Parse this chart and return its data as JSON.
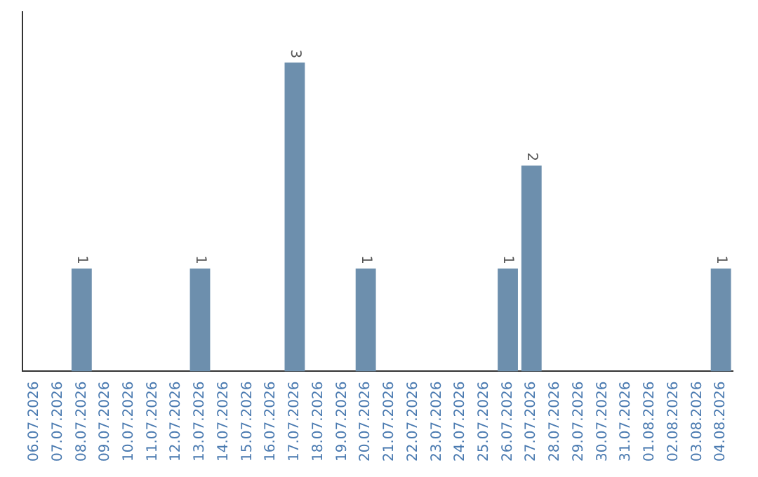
{
  "chart_data": {
    "type": "bar",
    "categories": [
      "06.07.2026",
      "07.07.2026",
      "08.07.2026",
      "09.07.2026",
      "10.07.2026",
      "11.07.2026",
      "12.07.2026",
      "13.07.2026",
      "14.07.2026",
      "15.07.2026",
      "16.07.2026",
      "17.07.2026",
      "18.07.2026",
      "19.07.2026",
      "20.07.2026",
      "21.07.2026",
      "22.07.2026",
      "23.07.2026",
      "24.07.2026",
      "25.07.2026",
      "26.07.2026",
      "27.07.2026",
      "28.07.2026",
      "29.07.2026",
      "30.07.2026",
      "31.07.2026",
      "01.08.2026",
      "02.08.2026",
      "03.08.2026",
      "04.08.2026"
    ],
    "values": [
      0,
      0,
      1,
      0,
      0,
      0,
      0,
      1,
      0,
      0,
      0,
      3,
      0,
      0,
      1,
      0,
      0,
      0,
      0,
      0,
      1,
      2,
      0,
      0,
      0,
      0,
      0,
      0,
      0,
      1
    ],
    "value_labels": [
      null,
      null,
      "1",
      null,
      null,
      null,
      null,
      "1",
      null,
      null,
      null,
      "3",
      null,
      null,
      "1",
      null,
      null,
      null,
      null,
      null,
      "1",
      "2",
      null,
      null,
      null,
      null,
      null,
      null,
      null,
      "1"
    ],
    "color": "#6d8fad",
    "grid": false,
    "legend": false,
    "tick_labels": "x"
  }
}
